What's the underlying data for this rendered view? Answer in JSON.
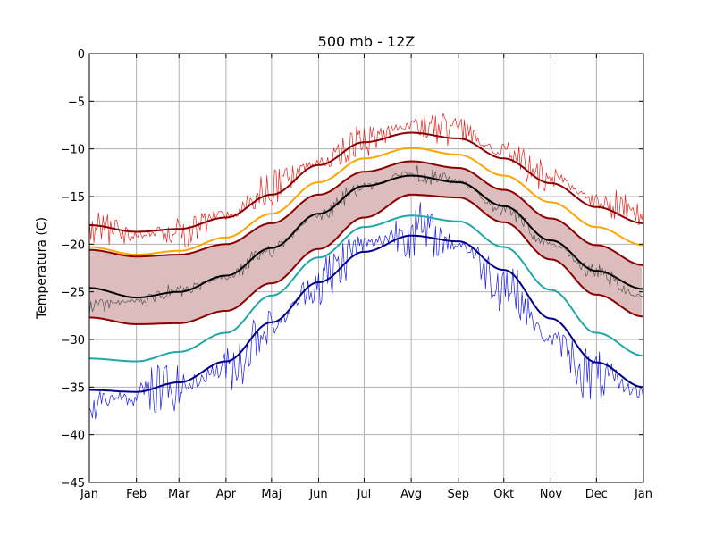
{
  "chart_data": {
    "type": "line",
    "title": "500 mb - 12Z",
    "xlabel": "",
    "ylabel": "Temperatura (C)",
    "ylim": [
      -45,
      0
    ],
    "yticks": [
      0,
      -5,
      -10,
      -15,
      -20,
      -25,
      -30,
      -35,
      -40,
      -45
    ],
    "ytick_labels": [
      "0",
      "−5",
      "−10",
      "−15",
      "−20",
      "−25",
      "−30",
      "−35",
      "−40",
      "−45"
    ],
    "xticks": [
      0,
      31,
      59,
      90,
      120,
      151,
      181,
      212,
      243,
      273,
      304,
      334,
      365
    ],
    "xtick_labels": [
      "Jan",
      "Feb",
      "Mar",
      "Apr",
      "Maj",
      "Jun",
      "Jul",
      "Avg",
      "Sep",
      "Okt",
      "Nov",
      "Dec",
      "Jan"
    ],
    "xlim": [
      0,
      365
    ],
    "grid": true,
    "legend": "none",
    "band": {
      "color": "#dcbcbc",
      "upper": {
        "x": [
          0,
          31,
          59,
          90,
          120,
          151,
          181,
          212,
          243,
          273,
          304,
          334,
          365
        ],
        "values": [
          -20.6,
          -21.3,
          -21.1,
          -20.0,
          -17.8,
          -14.8,
          -12.4,
          -11.3,
          -12.0,
          -14.3,
          -17.3,
          -20.1,
          -22.2
        ]
      },
      "lower": {
        "x": [
          0,
          31,
          59,
          90,
          120,
          151,
          181,
          212,
          243,
          273,
          304,
          334,
          365
        ],
        "values": [
          -27.7,
          -28.4,
          -28.3,
          -27.0,
          -24.1,
          -20.5,
          -17.2,
          -14.8,
          -15.1,
          -17.7,
          -21.6,
          -25.3,
          -27.6
        ]
      }
    },
    "series": [
      {
        "color": "#8b0000",
        "width": 2,
        "x": [
          0,
          31,
          59,
          90,
          120,
          151,
          181,
          212,
          243,
          273,
          304,
          334,
          365
        ],
        "values": [
          -18.0,
          -18.7,
          -18.4,
          -17.2,
          -14.8,
          -11.7,
          -9.3,
          -8.3,
          -8.9,
          -11.0,
          -13.6,
          -16.1,
          -17.8
        ]
      },
      {
        "color": "#ffa500",
        "width": 2,
        "x": [
          0,
          31,
          59,
          90,
          120,
          151,
          181,
          212,
          243,
          273,
          304,
          334,
          365
        ],
        "values": [
          -20.3,
          -21.1,
          -20.7,
          -19.3,
          -16.8,
          -13.5,
          -11.0,
          -9.9,
          -10.6,
          -12.8,
          -15.6,
          -18.2,
          -20.1
        ]
      },
      {
        "color": "#8b0000",
        "width": 2,
        "x": [
          0,
          31,
          59,
          90,
          120,
          151,
          181,
          212,
          243,
          273,
          304,
          334,
          365
        ],
        "values": [
          -20.6,
          -21.3,
          -21.1,
          -20.0,
          -17.8,
          -14.8,
          -12.4,
          -11.3,
          -12.0,
          -14.3,
          -17.3,
          -20.1,
          -22.2
        ]
      },
      {
        "color": "#000000",
        "width": 2,
        "x": [
          0,
          31,
          59,
          90,
          120,
          151,
          181,
          212,
          243,
          273,
          304,
          334,
          365
        ],
        "values": [
          -24.6,
          -25.6,
          -25.0,
          -23.3,
          -20.4,
          -16.8,
          -13.9,
          -12.8,
          -13.5,
          -16.0,
          -19.6,
          -22.8,
          -24.7
        ]
      },
      {
        "color": "#8b0000",
        "width": 2,
        "x": [
          0,
          31,
          59,
          90,
          120,
          151,
          181,
          212,
          243,
          273,
          304,
          334,
          365
        ],
        "values": [
          -27.7,
          -28.4,
          -28.3,
          -27.0,
          -24.1,
          -20.5,
          -17.2,
          -14.8,
          -15.1,
          -17.7,
          -21.6,
          -25.3,
          -27.6
        ]
      },
      {
        "color": "#20a8a8",
        "width": 2,
        "x": [
          0,
          31,
          59,
          90,
          120,
          151,
          181,
          212,
          243,
          273,
          304,
          334,
          365
        ],
        "values": [
          -32.0,
          -32.3,
          -31.3,
          -29.3,
          -25.4,
          -21.4,
          -18.2,
          -17.0,
          -17.6,
          -20.3,
          -24.8,
          -29.3,
          -31.7
        ]
      },
      {
        "color": "#00008b",
        "width": 2,
        "x": [
          0,
          31,
          59,
          90,
          120,
          151,
          181,
          212,
          243,
          273,
          304,
          334,
          365
        ],
        "values": [
          -35.3,
          -35.5,
          -34.5,
          -32.3,
          -28.2,
          -24.0,
          -20.8,
          -19.1,
          -19.7,
          -22.7,
          -27.8,
          -32.4,
          -35.0
        ]
      },
      {
        "color": "#e8221c",
        "width": 0.7,
        "x": [
          0,
          31,
          59,
          90,
          120,
          151,
          181,
          212,
          243,
          273,
          304,
          334,
          365
        ],
        "values": [
          -18.5,
          -19.0,
          -18.6,
          -17.0,
          -14.2,
          -11.4,
          -9.2,
          -7.5,
          -8.1,
          -10.3,
          -13.0,
          -15.5,
          -17.0
        ]
      },
      {
        "color": "#555555",
        "width": 0.7,
        "x": [
          0,
          31,
          59,
          90,
          120,
          151,
          181,
          212,
          243,
          273,
          304,
          334,
          365
        ],
        "values": [
          -26.5,
          -26.0,
          -25.0,
          -23.5,
          -20.5,
          -17.0,
          -14.0,
          -12.5,
          -13.5,
          -16.5,
          -20.0,
          -23.0,
          -25.5
        ]
      },
      {
        "color": "#1c1ce8",
        "width": 0.7,
        "x": [
          0,
          31,
          59,
          90,
          120,
          151,
          181,
          212,
          243,
          273,
          304,
          334,
          365
        ],
        "values": [
          -36.5,
          -36.0,
          -35.0,
          -33.0,
          -28.5,
          -24.0,
          -20.0,
          -18.5,
          -20.0,
          -24.0,
          -30.0,
          -34.0,
          -35.5
        ]
      }
    ]
  }
}
